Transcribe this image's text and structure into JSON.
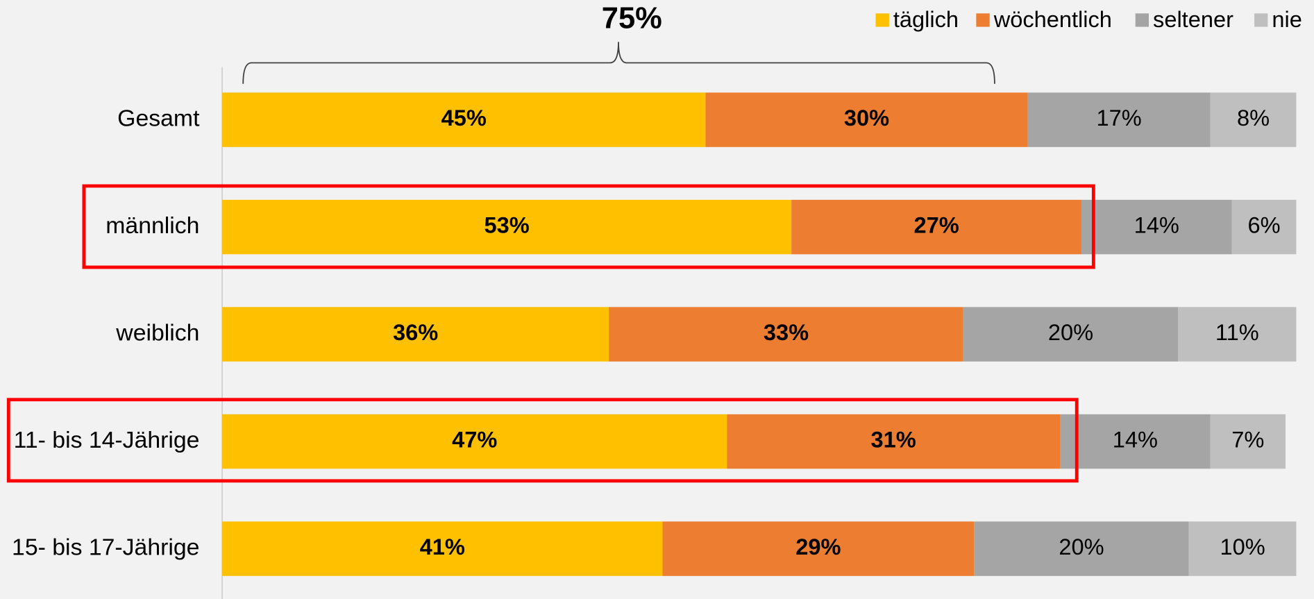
{
  "chart_data": {
    "type": "stacked_bar_horizontal",
    "annotation": "75%",
    "categories": [
      "Gesamt",
      "männlich",
      "weiblich",
      "11- bis 14-Jährige",
      "15- bis 17-Jährige"
    ],
    "series": [
      {
        "name": "täglich",
        "color": "#FFC000",
        "values": [
          45,
          53,
          36,
          47,
          41
        ],
        "value_labels": [
          "45%",
          "53%",
          "36%",
          "47%",
          "41%"
        ]
      },
      {
        "name": "wöchentlich",
        "color": "#ED7D31",
        "values": [
          30,
          27,
          33,
          31,
          29
        ],
        "value_labels": [
          "30%",
          "27%",
          "33%",
          "31%",
          "29%"
        ]
      },
      {
        "name": "seltener",
        "color": "#A5A5A5",
        "values": [
          17,
          14,
          20,
          14,
          20
        ],
        "value_labels": [
          "17%",
          "14%",
          "20%",
          "14%",
          "20%"
        ]
      },
      {
        "name": "nie",
        "color": "#BFBFBF",
        "values": [
          8,
          6,
          11,
          7,
          10
        ],
        "value_labels": [
          "8%",
          "6%",
          "11%",
          "7%",
          "10%"
        ]
      }
    ],
    "xlim": [
      0,
      100
    ],
    "legend": "top-right"
  }
}
